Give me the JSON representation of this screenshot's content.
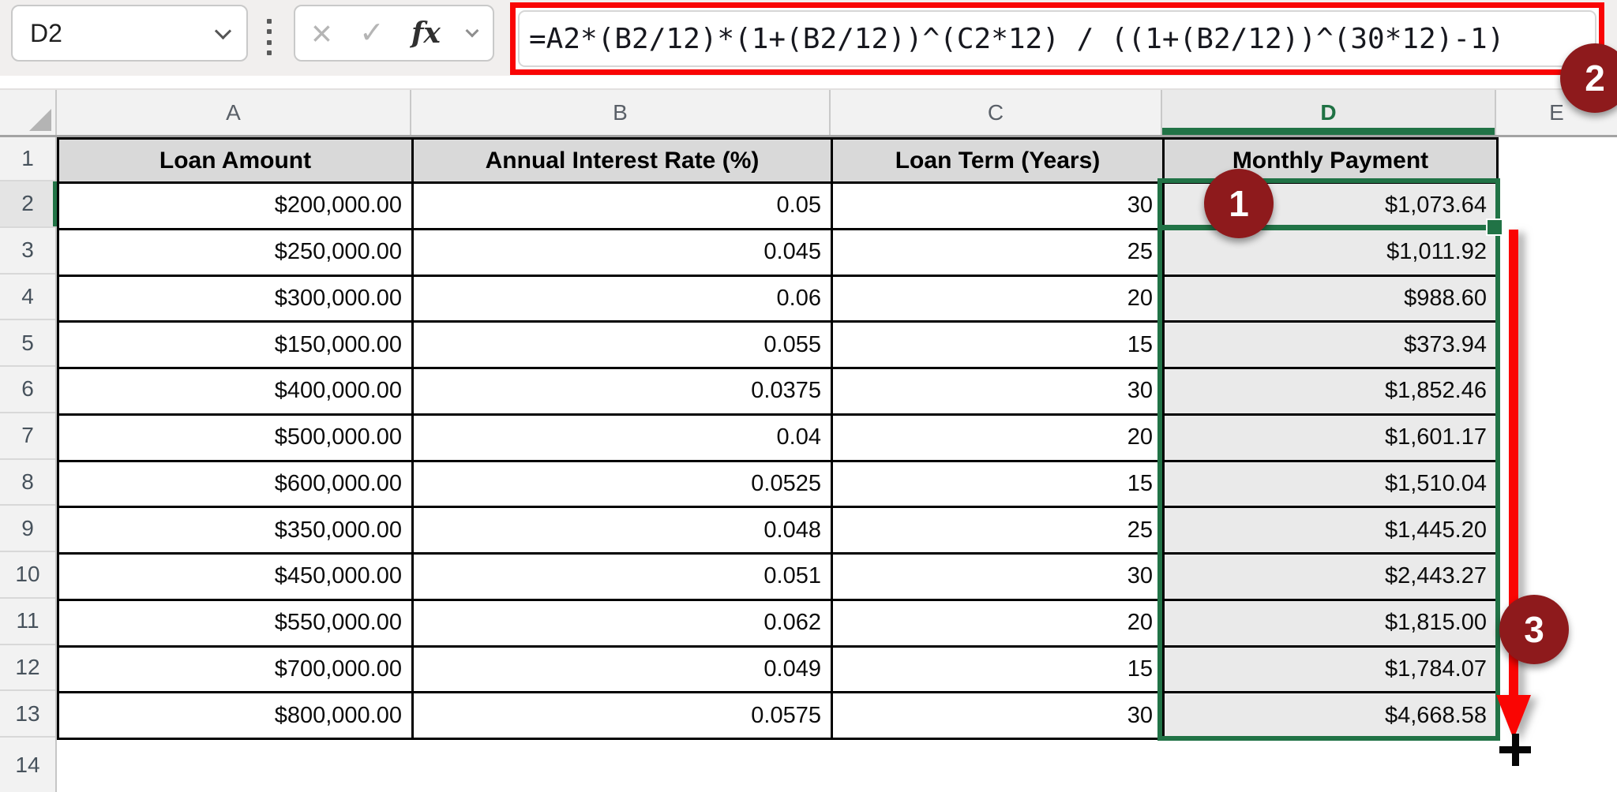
{
  "name_box": {
    "value": "D2"
  },
  "formula_bar": {
    "cancel_icon": "×",
    "enter_icon": "✓",
    "fx_label": "fx",
    "formula": "=A2*(B2/12)*(1+(B2/12))^(C2*12) / ((1+(B2/12))^(30*12)-1)"
  },
  "sheet": {
    "column_letters": [
      "A",
      "B",
      "C",
      "D",
      "E"
    ],
    "row_numbers": [
      "1",
      "2",
      "3",
      "4",
      "5",
      "6",
      "7",
      "8",
      "9",
      "10",
      "11",
      "12",
      "13",
      "14"
    ],
    "selected_cell": "D2",
    "selected_range": "D2:D13"
  },
  "table": {
    "headers": [
      "Loan Amount",
      "Annual Interest Rate (%)",
      "Loan Term (Years)",
      "Monthly Payment"
    ],
    "rows": [
      [
        "$200,000.00",
        "0.05",
        "30",
        "$1,073.64"
      ],
      [
        "$250,000.00",
        "0.045",
        "25",
        "$1,011.92"
      ],
      [
        "$300,000.00",
        "0.06",
        "20",
        "$988.60"
      ],
      [
        "$150,000.00",
        "0.055",
        "15",
        "$373.94"
      ],
      [
        "$400,000.00",
        "0.0375",
        "30",
        "$1,852.46"
      ],
      [
        "$500,000.00",
        "0.04",
        "20",
        "$1,601.17"
      ],
      [
        "$600,000.00",
        "0.0525",
        "15",
        "$1,510.04"
      ],
      [
        "$350,000.00",
        "0.048",
        "25",
        "$1,445.20"
      ],
      [
        "$450,000.00",
        "0.051",
        "30",
        "$2,443.27"
      ],
      [
        "$550,000.00",
        "0.062",
        "20",
        "$1,815.00"
      ],
      [
        "$700,000.00",
        "0.049",
        "15",
        "$1,784.07"
      ],
      [
        "$800,000.00",
        "0.0575",
        "30",
        "$4,668.58"
      ]
    ]
  },
  "annotations": {
    "step_1": "1",
    "step_2": "2",
    "step_3": "3"
  },
  "colors": {
    "excel_green": "#217346",
    "annotation_maroon": "#8E1A1C",
    "highlight_red": "#F90505",
    "header_fill": "#D9D9D9",
    "table_border": "#000000"
  }
}
